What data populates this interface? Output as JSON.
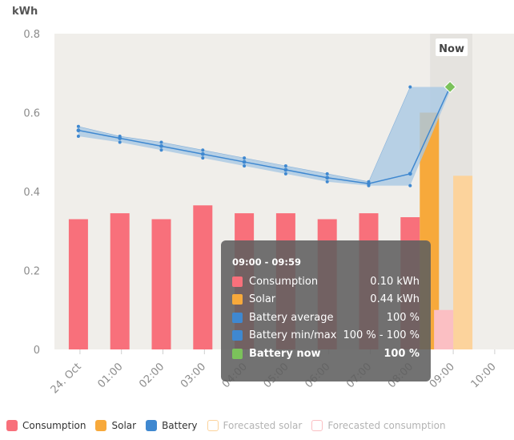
{
  "chart_data": {
    "type": "bar",
    "unit_label": "kWh",
    "ylim": [
      0,
      0.8
    ],
    "y_ticks": [
      "0.8",
      "0.6",
      "0.4",
      "0.2",
      "0"
    ],
    "x_ticks": [
      "24. Oct",
      "01:00",
      "02:00",
      "03:00",
      "04:00",
      "05:00",
      "06:00",
      "07:00",
      "08:00",
      "09:00",
      "10:00"
    ],
    "now_label": "Now",
    "consumption": [
      0.33,
      0.345,
      0.33,
      0.365,
      0.345,
      0.345,
      0.33,
      0.345,
      0.335
    ],
    "solar": [
      0,
      0,
      0,
      0,
      0,
      0,
      0,
      0,
      0.6
    ],
    "forecast_solar": [
      0.44
    ],
    "forecast_consumption": [
      0.1
    ],
    "battery_avg": [
      0.555,
      0.535,
      0.515,
      0.495,
      0.475,
      0.455,
      0.435,
      0.42,
      0.445
    ],
    "battery_min": [
      0.54,
      0.525,
      0.505,
      0.485,
      0.465,
      0.445,
      0.425,
      0.415,
      0.415
    ],
    "battery_max": [
      0.565,
      0.54,
      0.525,
      0.505,
      0.485,
      0.465,
      0.445,
      0.425,
      0.665
    ],
    "battery_now": 0.665,
    "colors": {
      "consumption": "#f8707b",
      "solar": "#f7a93b",
      "battery": "#3f88d0",
      "battery_band": "#a9c8e4",
      "battery_now": "#7bc25b",
      "forecast_solar": "#fcd39c",
      "forecast_consumption": "#fbbfc3",
      "plot_bg": "#f0eeea",
      "now_bg": "#e5e3df"
    }
  },
  "tooltip": {
    "title": "09:00 - 09:59",
    "rows": [
      {
        "label": "Consumption",
        "value": "0.10 kWh",
        "color": "#f8707b"
      },
      {
        "label": "Solar",
        "value": "0.44 kWh",
        "color": "#f7a93b"
      },
      {
        "label": "Battery average",
        "value": "100 %",
        "color": "#3f88d0"
      },
      {
        "label": "Battery min/max",
        "value": "100 % - 100 %",
        "color": "#3f88d0"
      },
      {
        "label": "Battery now",
        "value": "100 %",
        "color": "#7bc25b"
      }
    ]
  },
  "legend": [
    {
      "label": "Consumption",
      "color": "#f8707b",
      "style": "filled"
    },
    {
      "label": "Solar",
      "color": "#f7a93b",
      "style": "filled"
    },
    {
      "label": "Battery",
      "color": "#3f88d0",
      "style": "filled"
    },
    {
      "label": "Forecasted solar",
      "color": "#fcd39c",
      "style": "outline"
    },
    {
      "label": "Forecasted consumption",
      "color": "#fbbfc3",
      "style": "outline"
    }
  ]
}
